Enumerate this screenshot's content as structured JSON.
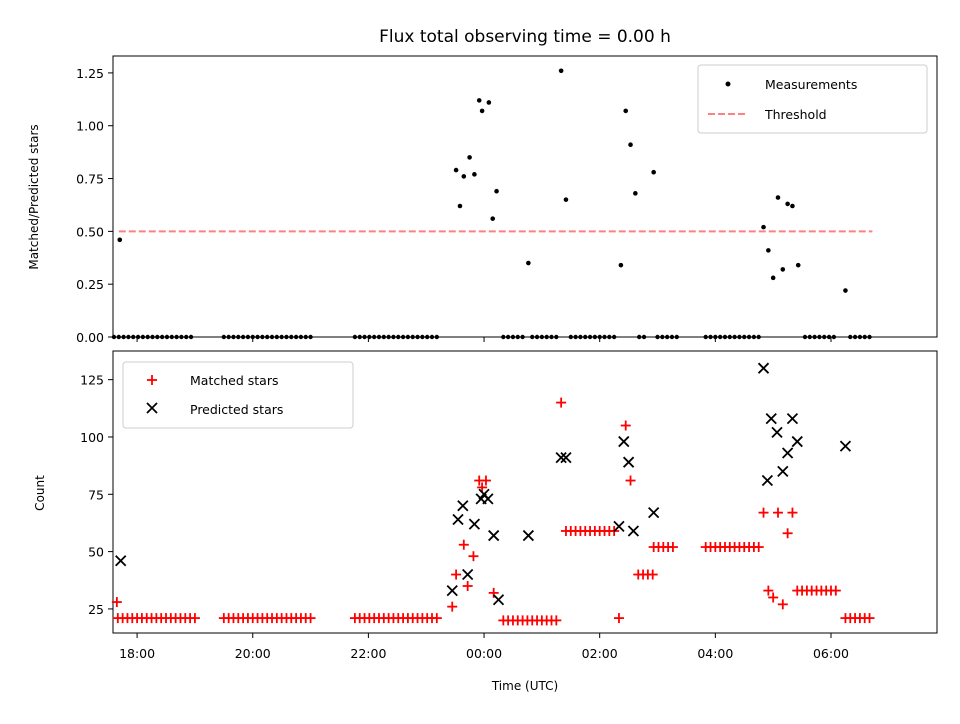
{
  "title": "Flux total observing time = 0.00 h",
  "chart_data": [
    {
      "type": "scatter",
      "ylabel": "Matched/Predicted stars",
      "ylim": [
        0,
        1.33
      ],
      "yticks": [
        0.0,
        0.25,
        0.5,
        0.75,
        1.0,
        1.25
      ],
      "ytick_labels": [
        "0.00",
        "0.25",
        "0.50",
        "0.75",
        "1.00",
        "1.25"
      ],
      "xlim": [
        "17:35",
        "07:50"
      ],
      "xticks": [
        "18:00",
        "20:00",
        "22:00",
        "00:00",
        "02:00",
        "04:00",
        "06:00"
      ],
      "legend": {
        "placement": "top-right",
        "items": [
          "Measurements",
          "Threshold"
        ]
      },
      "threshold": {
        "name": "Threshold",
        "y": 0.5,
        "x_from": "17:41",
        "x_to": "06:43",
        "color": "#ff8080"
      },
      "measurements": [
        [
          "17:42",
          0.46
        ],
        [
          "23:31",
          0.79
        ],
        [
          "23:35",
          0.62
        ],
        [
          "23:39",
          0.76
        ],
        [
          "23:45",
          0.85
        ],
        [
          "23:50",
          0.77
        ],
        [
          "23:55",
          1.12
        ],
        [
          "23:58",
          1.07
        ],
        [
          "00:05",
          1.11
        ],
        [
          "00:09",
          0.56
        ],
        [
          "00:13",
          0.69
        ],
        [
          "00:46",
          0.35
        ],
        [
          "01:20",
          1.26
        ],
        [
          "01:25",
          0.65
        ],
        [
          "02:22",
          0.34
        ],
        [
          "02:27",
          1.07
        ],
        [
          "02:32",
          0.91
        ],
        [
          "02:37",
          0.68
        ],
        [
          "02:56",
          0.78
        ],
        [
          "04:50",
          0.52
        ],
        [
          "04:55",
          0.41
        ],
        [
          "05:00",
          0.28
        ],
        [
          "05:05",
          0.66
        ],
        [
          "05:10",
          0.32
        ],
        [
          "05:15",
          0.63
        ],
        [
          "05:20",
          0.62
        ],
        [
          "05:26",
          0.34
        ],
        [
          "06:15",
          0.22
        ]
      ],
      "zero_runs": [
        [
          "17:36",
          "19:00"
        ],
        [
          "19:30",
          "21:00"
        ],
        [
          "21:46",
          "23:15"
        ],
        [
          "00:20",
          "00:40"
        ],
        [
          "00:50",
          "01:15"
        ],
        [
          "01:30",
          "02:15"
        ],
        [
          "02:41",
          "02:50"
        ],
        [
          "03:00",
          "03:20"
        ],
        [
          "03:50",
          "03:55"
        ],
        [
          "04:00",
          "04:45"
        ],
        [
          "05:33",
          "06:05"
        ],
        [
          "06:20",
          "06:43"
        ]
      ]
    },
    {
      "type": "scatter",
      "xlabel": "Time (UTC)",
      "ylabel": "Count",
      "ylim": [
        14.5,
        137.5
      ],
      "yticks": [
        25,
        50,
        75,
        100,
        125
      ],
      "xticks": [
        "18:00",
        "20:00",
        "22:00",
        "00:00",
        "02:00",
        "04:00",
        "06:00"
      ],
      "legend": {
        "placement": "top-left",
        "items": [
          "Matched stars",
          "Predicted stars"
        ]
      },
      "series": [
        {
          "name": "Matched stars",
          "marker": "+",
          "color": "#ff0000",
          "points": [
            [
              "17:39",
              28
            ],
            [
              "23:27",
              26
            ],
            [
              "23:31",
              40
            ],
            [
              "23:39",
              53
            ],
            [
              "23:43",
              35
            ],
            [
              "23:49",
              48
            ],
            [
              "23:55",
              81
            ],
            [
              "23:58",
              78
            ],
            [
              "00:02",
              81
            ],
            [
              "00:10",
              32
            ],
            [
              "01:20",
              115
            ],
            [
              "02:20",
              21
            ],
            [
              "02:27",
              105
            ],
            [
              "02:32",
              81
            ],
            [
              "04:50",
              67
            ],
            [
              "04:55",
              33
            ],
            [
              "05:00",
              30
            ],
            [
              "05:05",
              67
            ],
            [
              "05:10",
              27
            ],
            [
              "05:15",
              58
            ],
            [
              "05:20",
              67
            ]
          ],
          "runs": [
            {
              "from": "17:40",
              "to": "19:00",
              "y": 21
            },
            {
              "from": "19:30",
              "to": "21:00",
              "y": 21
            },
            {
              "from": "21:46",
              "to": "23:15",
              "y": 21
            },
            {
              "from": "00:20",
              "to": "01:15",
              "y": 20
            },
            {
              "from": "01:25",
              "to": "02:15",
              "y": 59
            },
            {
              "from": "02:40",
              "to": "02:55",
              "y": 40
            },
            {
              "from": "02:56",
              "to": "03:20",
              "y": 52
            },
            {
              "from": "03:50",
              "to": "04:45",
              "y": 52
            },
            {
              "from": "05:25",
              "to": "06:05",
              "y": 33
            },
            {
              "from": "06:15",
              "to": "06:43",
              "y": 21
            }
          ]
        },
        {
          "name": "Predicted stars",
          "marker": "x",
          "color": "#000000",
          "points": [
            [
              "17:43",
              46
            ],
            [
              "23:27",
              33
            ],
            [
              "23:33",
              64
            ],
            [
              "23:38",
              70
            ],
            [
              "23:43",
              40
            ],
            [
              "23:50",
              62
            ],
            [
              "23:57",
              73
            ],
            [
              "00:00",
              75
            ],
            [
              "00:04",
              73
            ],
            [
              "00:10",
              57
            ],
            [
              "00:15",
              29
            ],
            [
              "00:46",
              57
            ],
            [
              "01:20",
              91
            ],
            [
              "01:25",
              91
            ],
            [
              "02:20",
              61
            ],
            [
              "02:25",
              98
            ],
            [
              "02:30",
              89
            ],
            [
              "02:35",
              59
            ],
            [
              "02:56",
              67
            ],
            [
              "04:50",
              130
            ],
            [
              "04:54",
              81
            ],
            [
              "04:58",
              108
            ],
            [
              "05:04",
              102
            ],
            [
              "05:10",
              85
            ],
            [
              "05:15",
              93
            ],
            [
              "05:20",
              108
            ],
            [
              "05:25",
              98
            ],
            [
              "06:15",
              96
            ]
          ]
        }
      ]
    }
  ]
}
